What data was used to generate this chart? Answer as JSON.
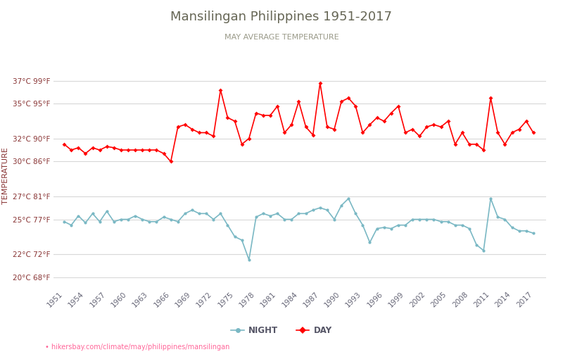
{
  "title": "Mansilingan Philippines 1951-2017",
  "subtitle": "MAY AVERAGE TEMPERATURE",
  "ylabel": "TEMPERATURE",
  "url_text": "• hikersbay.com/climate/may/philippines/mansilingan",
  "years": [
    1951,
    1952,
    1953,
    1954,
    1955,
    1956,
    1957,
    1958,
    1959,
    1960,
    1961,
    1962,
    1963,
    1964,
    1965,
    1966,
    1967,
    1968,
    1969,
    1970,
    1971,
    1972,
    1973,
    1974,
    1975,
    1976,
    1977,
    1978,
    1979,
    1980,
    1981,
    1982,
    1983,
    1984,
    1985,
    1986,
    1987,
    1988,
    1989,
    1990,
    1991,
    1992,
    1993,
    1994,
    1995,
    1996,
    1997,
    1998,
    1999,
    2000,
    2001,
    2002,
    2003,
    2004,
    2005,
    2006,
    2007,
    2008,
    2009,
    2010,
    2011,
    2012,
    2013,
    2014,
    2015,
    2016,
    2017
  ],
  "day_temps": [
    31.5,
    31.0,
    31.2,
    30.7,
    31.2,
    31.0,
    31.3,
    31.2,
    31.0,
    31.0,
    31.0,
    31.0,
    31.0,
    31.0,
    30.7,
    30.0,
    33.0,
    33.2,
    32.8,
    32.5,
    32.5,
    32.2,
    36.2,
    33.8,
    33.5,
    31.5,
    32.0,
    34.2,
    34.0,
    34.0,
    34.8,
    32.5,
    33.2,
    35.2,
    33.0,
    32.3,
    36.8,
    33.0,
    32.8,
    35.2,
    35.5,
    34.8,
    32.5,
    33.2,
    33.8,
    33.5,
    34.2,
    34.8,
    32.5,
    32.8,
    32.2,
    33.0,
    33.2,
    33.0,
    33.5,
    31.5,
    32.5,
    31.5,
    31.5,
    31.0,
    35.5,
    32.5,
    31.5,
    32.5,
    32.8,
    33.5,
    32.5
  ],
  "night_temps": [
    24.8,
    24.5,
    25.3,
    24.7,
    25.5,
    24.8,
    25.7,
    24.8,
    25.0,
    25.0,
    25.3,
    25.0,
    24.8,
    24.8,
    25.2,
    25.0,
    24.8,
    25.5,
    25.8,
    25.5,
    25.5,
    25.0,
    25.5,
    24.5,
    23.5,
    23.2,
    21.5,
    25.2,
    25.5,
    25.3,
    25.5,
    25.0,
    25.0,
    25.5,
    25.5,
    25.8,
    26.0,
    25.8,
    25.0,
    26.2,
    26.8,
    25.5,
    24.5,
    23.0,
    24.2,
    24.3,
    24.2,
    24.5,
    24.5,
    25.0,
    25.0,
    25.0,
    25.0,
    24.8,
    24.8,
    24.5,
    24.5,
    24.2,
    22.8,
    22.3,
    26.8,
    25.2,
    25.0,
    24.3,
    24.0,
    24.0,
    23.8
  ],
  "day_color": "#ff0000",
  "night_color": "#7ab8c4",
  "day_marker": "D",
  "night_marker": "o",
  "marker_size": 3,
  "line_width": 1.2,
  "yticks_c": [
    20,
    22,
    25,
    27,
    30,
    32,
    35,
    37
  ],
  "yticks_f": [
    68,
    72,
    77,
    81,
    86,
    90,
    95,
    99
  ],
  "ylim": [
    19.0,
    38.5
  ],
  "xlim": [
    1949.5,
    2018.8
  ],
  "xtick_years": [
    1951,
    1954,
    1957,
    1960,
    1963,
    1966,
    1969,
    1972,
    1975,
    1978,
    1981,
    1984,
    1987,
    1990,
    1993,
    1996,
    1999,
    2002,
    2005,
    2008,
    2011,
    2014,
    2017
  ],
  "grid_color": "#d8d8d8",
  "bg_color": "#ffffff",
  "title_color": "#666655",
  "subtitle_color": "#999988",
  "ytick_color": "#883333",
  "xtick_color": "#666677",
  "ylabel_color": "#883333",
  "url_color": "#ff6699",
  "legend_night_label": "NIGHT",
  "legend_day_label": "DAY",
  "legend_text_color": "#555566"
}
